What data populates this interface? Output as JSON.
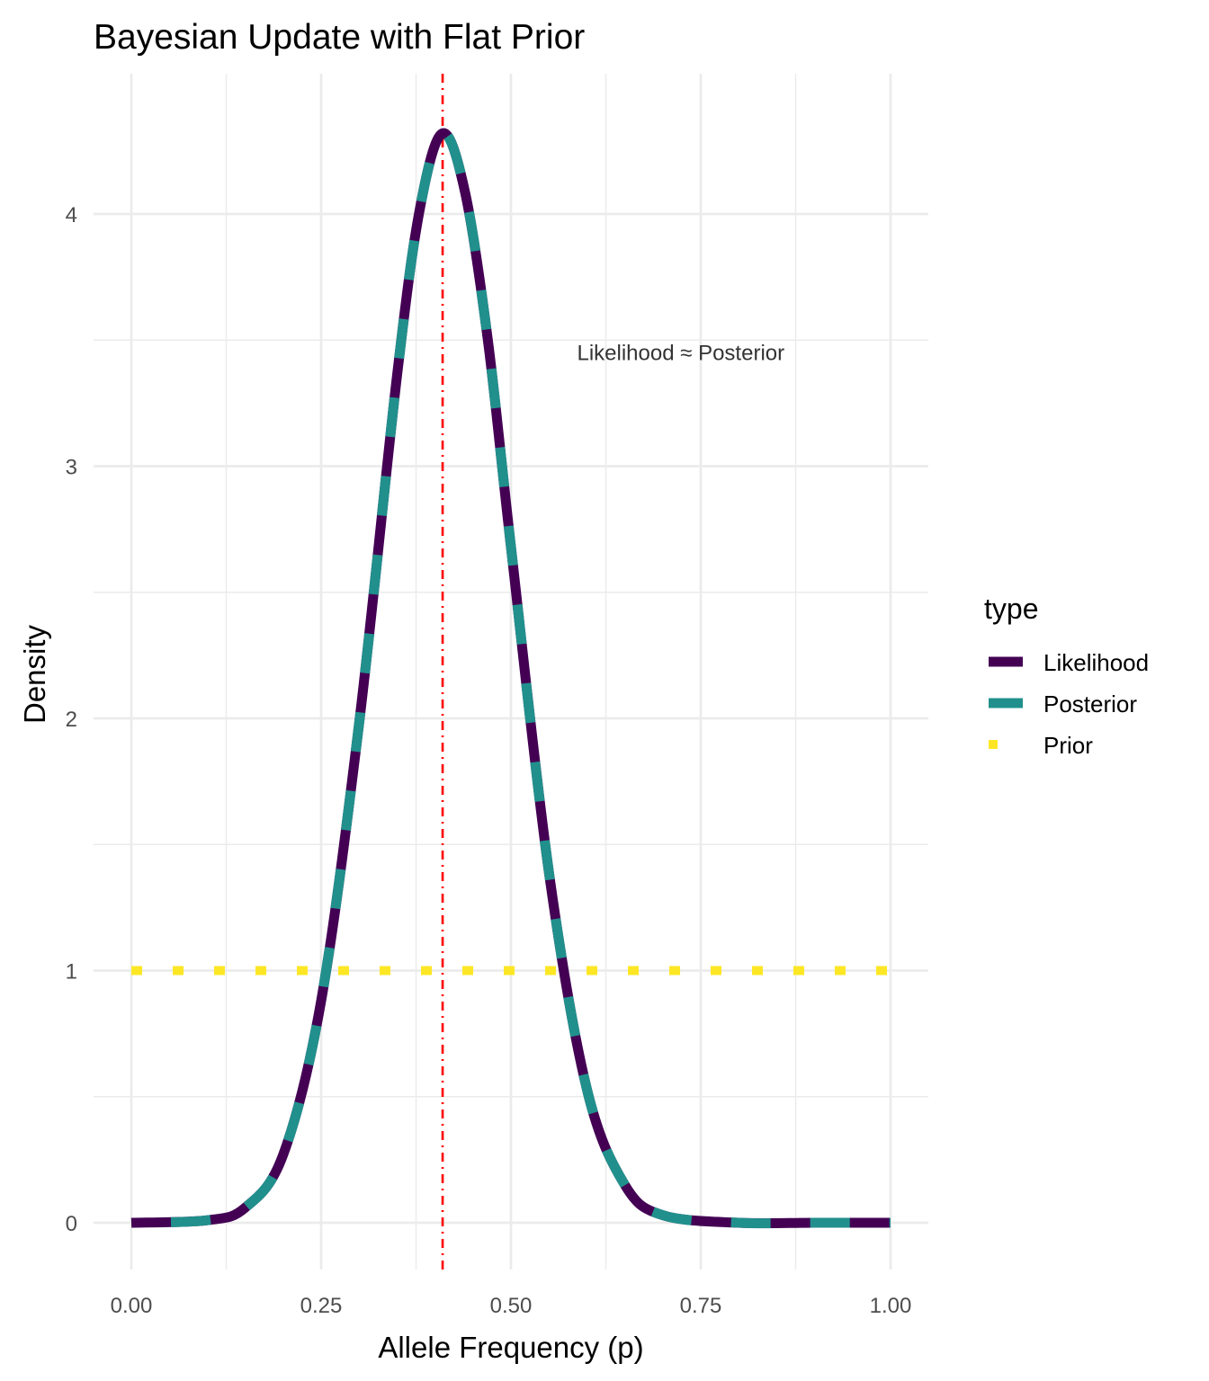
{
  "chart_data": {
    "type": "line",
    "title": "Bayesian Update with Flat Prior",
    "xlabel": "Allele Frequency (p)",
    "ylabel": "Density",
    "xlim": [
      -0.1,
      1.1
    ],
    "ylim": [
      -0.2,
      4.55
    ],
    "x_ticks": [
      0.0,
      0.25,
      0.5,
      0.75,
      1.0
    ],
    "x_tick_labels": [
      "0.00",
      "0.25",
      "0.50",
      "0.75",
      "1.00"
    ],
    "y_ticks": [
      0,
      1,
      2,
      3,
      4
    ],
    "y_tick_labels": [
      "0",
      "1",
      "2",
      "3",
      "4"
    ],
    "grid": true,
    "legend": {
      "title": "type",
      "position": "right",
      "entries": [
        "Likelihood",
        "Posterior",
        "Prior"
      ]
    },
    "series": [
      {
        "name": "Likelihood",
        "color": "#440154",
        "linestyle": "solid",
        "x": [
          0.0,
          0.1,
          0.15,
          0.2,
          0.25,
          0.3,
          0.35,
          0.38,
          0.41,
          0.44,
          0.47,
          0.5,
          0.55,
          0.6,
          0.65,
          0.7,
          0.8,
          0.9,
          1.0
        ],
        "values": [
          0.0,
          0.01,
          0.06,
          0.27,
          0.88,
          1.98,
          3.36,
          4.02,
          4.32,
          4.08,
          3.49,
          2.68,
          1.39,
          0.53,
          0.15,
          0.03,
          0.0,
          0.0,
          0.0
        ]
      },
      {
        "name": "Posterior",
        "color": "#21908C",
        "linestyle": "dashed",
        "x": [
          0.0,
          0.1,
          0.15,
          0.2,
          0.25,
          0.3,
          0.35,
          0.38,
          0.41,
          0.44,
          0.47,
          0.5,
          0.55,
          0.6,
          0.65,
          0.7,
          0.8,
          0.9,
          1.0
        ],
        "values": [
          0.0,
          0.01,
          0.06,
          0.27,
          0.88,
          1.98,
          3.36,
          4.02,
          4.32,
          4.08,
          3.49,
          2.68,
          1.39,
          0.53,
          0.15,
          0.03,
          0.0,
          0.0,
          0.0
        ]
      },
      {
        "name": "Prior",
        "color": "#FDE725",
        "linestyle": "dotted",
        "x": [
          0.0,
          1.0
        ],
        "values": [
          1.0,
          1.0
        ]
      }
    ],
    "vline": {
      "x": 0.41,
      "color": "#FF0000",
      "linestyle": "dotdash"
    },
    "annotation": {
      "text": "Likelihood ≈ Posterior",
      "x": 0.7,
      "y": 3.45
    }
  }
}
